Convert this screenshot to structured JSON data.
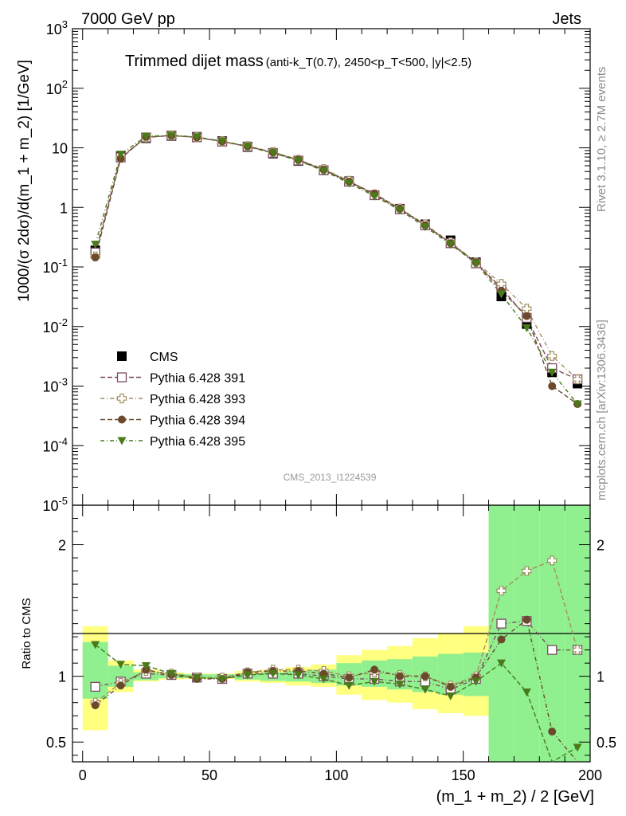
{
  "header": {
    "left": "7000 GeV pp",
    "right": "Jets"
  },
  "side_labels": {
    "rivet": "Rivet 3.1.10, ≥ 2.7M events",
    "mcplots": "mcplots.cern.ch [arXiv:1306.3436]"
  },
  "analysis_tag": "CMS_2013_I1224539",
  "title": {
    "main": "Trimmed dijet mass",
    "sub": "(anti-k_T(0.7), 2450<p_T<500, |y|<2.5)"
  },
  "chart_data": [
    {
      "type": "scatter",
      "panel": "main",
      "ylabel": "1000/(σ 2dσ)/d(m_1 + m_2) [1/GeV]",
      "yscale": "log",
      "ylim": [
        1e-05,
        1000
      ],
      "xlim": [
        -4,
        200
      ],
      "y_tick_labels": [
        "10^-5",
        "10^-4",
        "10^-3",
        "10^-2",
        "10^-1",
        "1",
        "10",
        "10^2",
        "10^3"
      ],
      "x": [
        5,
        15,
        25,
        35,
        45,
        55,
        65,
        75,
        85,
        95,
        105,
        115,
        125,
        135,
        145,
        155,
        165,
        175,
        185,
        195
      ],
      "series": [
        {
          "name": "CMS",
          "color": "#000000",
          "marker": "square-filled",
          "values": [
            0.19,
            7.2,
            14.5,
            15.8,
            15.3,
            13.0,
            10.3,
            8.0,
            6.0,
            4.2,
            2.75,
            1.6,
            0.95,
            0.52,
            0.28,
            0.12,
            0.032,
            0.011,
            0.0017,
            0.0011
          ]
        },
        {
          "name": "Pythia 6.428 391",
          "color": "#7b4a62",
          "marker": "square-open",
          "values": [
            0.175,
            6.9,
            14.9,
            16.1,
            15.0,
            12.7,
            10.5,
            8.2,
            6.1,
            4.2,
            2.7,
            1.6,
            0.93,
            0.5,
            0.25,
            0.115,
            0.045,
            0.014,
            0.002,
            0.0013
          ]
        },
        {
          "name": "Pythia 6.428 393",
          "color": "#a09060",
          "marker": "cross-open",
          "values": [
            0.15,
            6.8,
            15.0,
            16.2,
            15.1,
            12.9,
            10.7,
            8.5,
            6.3,
            4.4,
            2.8,
            1.65,
            0.96,
            0.52,
            0.26,
            0.12,
            0.052,
            0.02,
            0.0032,
            0.0013
          ]
        },
        {
          "name": "Pythia 6.428 394",
          "color": "#6b4a2b",
          "marker": "circle-filled",
          "values": [
            0.145,
            6.6,
            15.3,
            16.0,
            15.0,
            12.8,
            10.6,
            8.4,
            6.3,
            4.3,
            2.7,
            1.7,
            0.95,
            0.5,
            0.25,
            0.12,
            0.04,
            0.015,
            0.001,
            0.0005
          ]
        },
        {
          "name": "Pythia 6.428 395",
          "color": "#4a7a1a",
          "marker": "triangle-down-filled",
          "values": [
            0.24,
            7.8,
            15.6,
            16.2,
            15.2,
            12.9,
            10.5,
            8.2,
            6.1,
            4.1,
            2.55,
            1.55,
            0.9,
            0.47,
            0.24,
            0.115,
            0.035,
            0.0095,
            0.0017,
            0.0005
          ]
        }
      ]
    },
    {
      "type": "scatter",
      "panel": "ratio",
      "xlabel": "(m_1 + m_2) / 2 [GeV]",
      "ylabel": "Ratio to CMS",
      "ylim": [
        0.35,
        2.3
      ],
      "xlim": [
        -4,
        200
      ],
      "x_tick_labels": [
        "0",
        "50",
        "100",
        "150",
        "200"
      ],
      "y_tick_labels": [
        "0.5",
        "1",
        "2"
      ],
      "bins": [
        0,
        10,
        20,
        30,
        40,
        50,
        60,
        70,
        80,
        90,
        100,
        110,
        120,
        130,
        140,
        150,
        160,
        170,
        180,
        190,
        200
      ],
      "band_green_lo": [
        0.83,
        0.92,
        0.97,
        0.985,
        0.985,
        0.985,
        0.975,
        0.965,
        0.96,
        0.95,
        0.93,
        0.92,
        0.9,
        0.88,
        0.86,
        0.85,
        0.35,
        0.35,
        0.35,
        0.35
      ],
      "band_green_hi": [
        1.26,
        1.08,
        1.03,
        1.02,
        1.015,
        1.015,
        1.02,
        1.03,
        1.04,
        1.05,
        1.1,
        1.12,
        1.13,
        1.15,
        1.17,
        1.18,
        2.3,
        2.3,
        2.3,
        2.3
      ],
      "band_yellow_lo": [
        0.59,
        0.88,
        0.96,
        0.975,
        0.98,
        0.98,
        0.96,
        0.95,
        0.93,
        0.92,
        0.86,
        0.82,
        0.8,
        0.75,
        0.72,
        0.7,
        0.5,
        0.42,
        0.35,
        0.35
      ],
      "band_yellow_hi": [
        1.38,
        1.12,
        1.05,
        1.03,
        1.02,
        1.02,
        1.04,
        1.05,
        1.07,
        1.09,
        1.16,
        1.2,
        1.23,
        1.29,
        1.33,
        1.38,
        2.3,
        2.3,
        2.3,
        2.3
      ],
      "series": [
        {
          "name": "Pythia 6.428 391",
          "values": [
            0.92,
            0.96,
            1.02,
            1.01,
            0.99,
            0.98,
            1.02,
            1.02,
            1.02,
            1.0,
            0.98,
            0.98,
            0.96,
            0.96,
            0.9,
            0.98,
            1.4,
            1.42,
            1.2,
            1.2
          ]
        },
        {
          "name": "Pythia 6.428 393",
          "values": [
            0.8,
            0.95,
            1.04,
            1.02,
            0.99,
            0.99,
            1.03,
            1.05,
            1.05,
            1.04,
            1.0,
            1.03,
            1.01,
            1.0,
            0.93,
            1.0,
            1.65,
            1.8,
            1.88,
            1.2
          ]
        },
        {
          "name": "Pythia 6.428 394",
          "values": [
            0.78,
            0.93,
            1.05,
            1.01,
            0.98,
            0.98,
            1.03,
            1.04,
            1.04,
            1.02,
            0.99,
            1.05,
            1.0,
            1.0,
            0.92,
            0.99,
            1.28,
            1.43,
            0.58,
            0.35
          ]
        },
        {
          "name": "Pythia 6.428 395",
          "values": [
            1.24,
            1.09,
            1.08,
            1.02,
            0.99,
            0.98,
            1.01,
            1.02,
            1.01,
            0.98,
            0.93,
            0.96,
            0.94,
            0.9,
            0.85,
            0.96,
            1.1,
            0.88,
            0.35,
            0.46
          ]
        }
      ]
    }
  ]
}
